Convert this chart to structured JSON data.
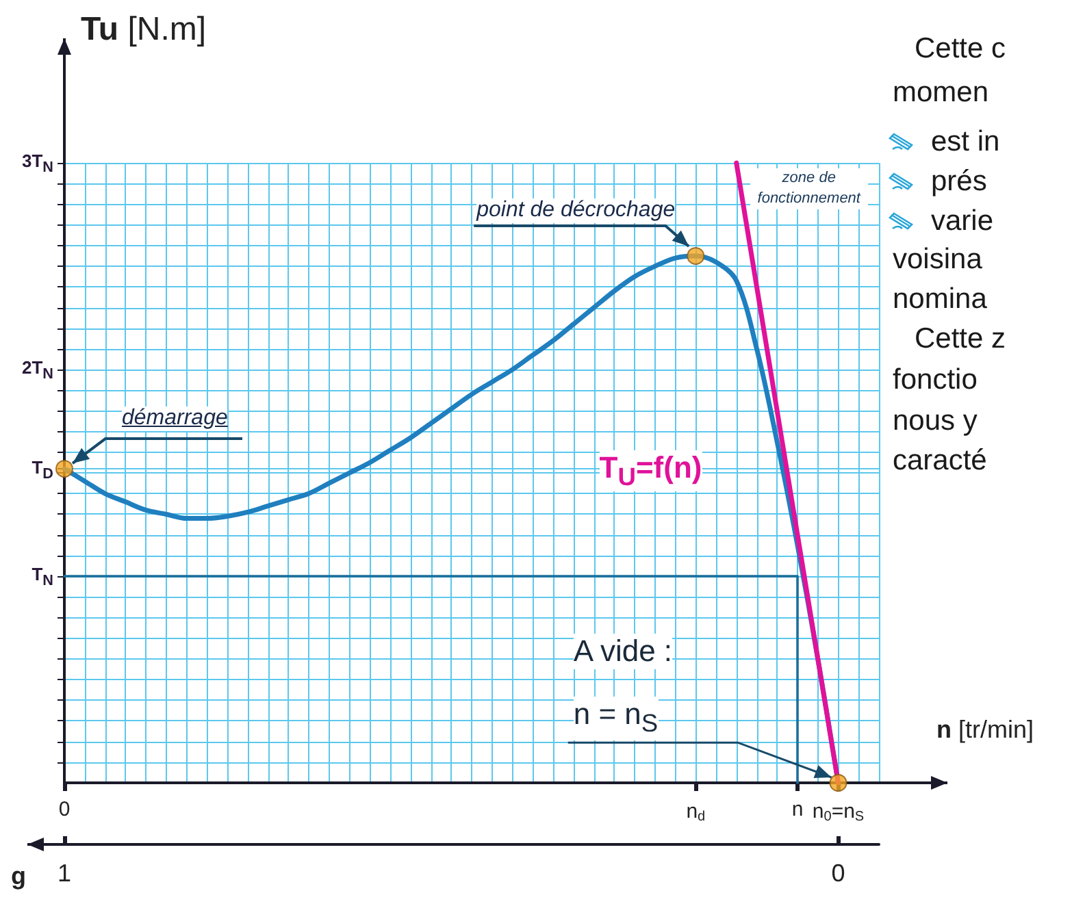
{
  "chart_data": {
    "type": "line",
    "xlabel": "n [tr/min]",
    "ylabel": "Tu [N.m]",
    "x2label": "g",
    "categories": [
      "0",
      null,
      null,
      null,
      null,
      null,
      null,
      null,
      null,
      null,
      null,
      null,
      null,
      null,
      null,
      null,
      null,
      null,
      null,
      null,
      null,
      null,
      null,
      null,
      null,
      null,
      null,
      null,
      null,
      null,
      null,
      "n$_{d}$",
      null,
      null,
      null,
      null,
      "n",
      null,
      "n$_{0}$=n$_{S}$",
      null,
      null
    ],
    "x2lim": [
      1,
      -0.0526
    ],
    "x2ticks": [
      1,
      0
    ],
    "ylim": [
      0,
      3.59
    ],
    "yticks": [
      {
        "value": 0.1,
        "label": null
      },
      {
        "value": 0.2,
        "label": null
      },
      {
        "value": 0.3,
        "label": null
      },
      {
        "value": 0.4,
        "label": null
      },
      {
        "value": 0.5,
        "label": null
      },
      {
        "value": 0.6,
        "label": null
      },
      {
        "value": 0.7,
        "label": null
      },
      {
        "value": 0.8,
        "label": null
      },
      {
        "value": 0.9,
        "label": null
      },
      {
        "value": 1,
        "label": "T$_{N}$"
      },
      {
        "value": 1.1,
        "label": null
      },
      {
        "value": 1.2,
        "label": null
      },
      {
        "value": 1.3,
        "label": null
      },
      {
        "value": 1.4,
        "label": null
      },
      {
        "value": 1.5,
        "label": null
      },
      {
        "value": 1.52,
        "label": "T$_{D}$"
      },
      {
        "value": 1.6,
        "label": null
      },
      {
        "value": 1.7,
        "label": null
      },
      {
        "value": 1.8,
        "label": null
      },
      {
        "value": 1.9,
        "label": null
      },
      {
        "value": 2,
        "label": "2T$_{N}$"
      },
      {
        "value": 2.1,
        "label": null
      },
      {
        "value": 2.2,
        "label": null
      },
      {
        "value": 2.3,
        "label": null
      },
      {
        "value": 2.4,
        "label": null
      },
      {
        "value": 2.5,
        "label": null
      },
      {
        "value": 2.6,
        "label": null
      },
      {
        "value": 2.7,
        "label": null
      },
      {
        "value": 2.8,
        "label": null
      },
      {
        "value": 2.9,
        "label": null
      },
      {
        "value": 3,
        "label": "3T$_{N}$"
      }
    ],
    "grid": true,
    "marker": "none",
    "line_style": "solid",
    "series": [
      {
        "color": "#1f7fbf",
        "values": [
          1.52,
          1.46,
          1.4,
          1.36,
          1.32,
          1.3,
          1.28,
          1.28,
          1.29,
          1.31,
          1.34,
          1.37,
          1.4,
          1.45,
          1.5,
          1.55,
          1.61,
          1.67,
          1.74,
          1.81,
          1.88,
          1.94,
          2.0,
          2.07,
          2.14,
          2.22,
          2.3,
          2.38,
          2.45,
          2.5,
          2.54,
          2.55,
          2.52,
          2.43,
          2.1,
          1.65,
          1.15,
          0.6,
          0,
          null,
          null
        ]
      },
      {
        "color": "#e0129a",
        "values": [
          null,
          null,
          null,
          null,
          null,
          null,
          null,
          null,
          null,
          null,
          null,
          null,
          null,
          null,
          null,
          null,
          null,
          null,
          null,
          null,
          null,
          null,
          null,
          null,
          null,
          null,
          null,
          null,
          null,
          null,
          null,
          null,
          null,
          3,
          2.4,
          1.8,
          1.2,
          0.6,
          0,
          null,
          null
        ]
      },
      {
        "type": "scatter",
        "color": "#f5a623",
        "marker": "circle",
        "x": [
          "0",
          "n$_{d}$",
          "n$_{0}$=n$_{S}$"
        ],
        "values": [
          1.52,
          2.55,
          0
        ]
      },
      {
        "color": "#1a6f99",
        "x": [
          "0",
          "n",
          "n"
        ],
        "values": [
          1,
          1,
          0
        ]
      }
    ],
    "annotations": [
      {
        "text": "démarrage",
        "x": "0",
        "y": 1.52
      },
      {
        "text": "point de décrochage",
        "x": "n$_{d}$",
        "y": 2.55
      },
      "zone de fonctionnement",
      "T$_{U}$=f(n)",
      "A vide :",
      {
        "text": "n = n$_{S}$",
        "x": "n$_{0}$=n$_{S}$",
        "y": 0
      },
      "Cette c",
      "momen",
      "est in",
      "prés",
      "varie",
      "voisina",
      "nomina",
      "Cette z",
      "fonctio",
      "nous y",
      "caracté"
    ]
  }
}
